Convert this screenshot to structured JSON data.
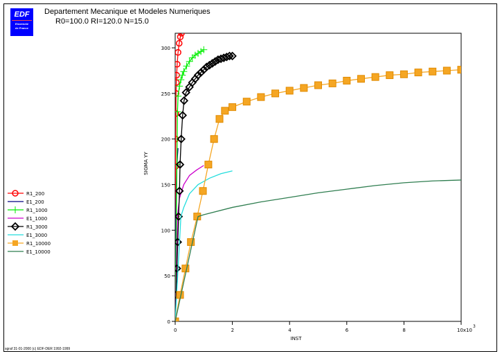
{
  "header": {
    "logo_text": "EDF",
    "logo_sub1": "Electricité",
    "logo_sub2": "de France",
    "title": "Departement Mecanique et Modeles Numeriques",
    "subtitle": "R0=100.0 RI=120.0 N=15.0"
  },
  "footer": {
    "text": "sgraf 31-01-2000 (c) EDF-DER 1992-1999"
  },
  "chart_data": {
    "type": "line",
    "title": "Departement Mecanique et Modeles Numeriques",
    "xlabel": "INST",
    "ylabel": "SIGMA YY",
    "x_multiplier": "x10^3",
    "xlim": [
      0,
      10
    ],
    "ylim": [
      0,
      316
    ],
    "xticks": [
      0,
      2,
      4,
      6,
      8,
      10
    ],
    "xtick_labels": [
      "0",
      "2",
      "4",
      "6",
      "8",
      "10x10"
    ],
    "xtick_exp": "3",
    "yticks": [
      0,
      50,
      100,
      150,
      200,
      250,
      300
    ],
    "ytick_labels": [
      "0",
      "50",
      "100",
      "150",
      "200",
      "250",
      "300"
    ],
    "legend_position": "left",
    "grid": false,
    "series": [
      {
        "name": "R1_200",
        "color": "#ff0000",
        "marker": "circle",
        "points": [
          [
            0,
            0
          ],
          [
            0.005,
            57
          ],
          [
            0.01,
            115
          ],
          [
            0.015,
            170
          ],
          [
            0.02,
            200
          ],
          [
            0.025,
            228
          ],
          [
            0.03,
            250
          ],
          [
            0.04,
            262
          ],
          [
            0.05,
            270
          ],
          [
            0.07,
            282
          ],
          [
            0.1,
            295
          ],
          [
            0.14,
            305
          ],
          [
            0.18,
            312
          ],
          [
            0.22,
            316
          ]
        ]
      },
      {
        "name": "E1_200",
        "color": "#000080",
        "marker": "none",
        "points": [
          [
            0,
            0
          ],
          [
            0.02,
            115
          ],
          [
            0.04,
            150
          ],
          [
            0.06,
            170
          ],
          [
            0.08,
            182
          ],
          [
            0.1,
            190
          ]
        ]
      },
      {
        "name": "R1_1000",
        "color": "#00ee00",
        "marker": "plus",
        "points": [
          [
            0,
            0
          ],
          [
            0.04,
            115
          ],
          [
            0.06,
            172
          ],
          [
            0.08,
            230
          ],
          [
            0.1,
            247
          ],
          [
            0.15,
            258
          ],
          [
            0.2,
            265
          ],
          [
            0.25,
            270
          ],
          [
            0.3,
            274
          ],
          [
            0.4,
            280
          ],
          [
            0.5,
            285
          ],
          [
            0.6,
            289
          ],
          [
            0.7,
            292
          ],
          [
            0.8,
            294
          ],
          [
            0.9,
            296
          ],
          [
            1.0,
            298
          ]
        ]
      },
      {
        "name": "E1_1000",
        "color": "#cc00cc",
        "marker": "none",
        "points": [
          [
            0,
            0
          ],
          [
            0.08,
            115
          ],
          [
            0.15,
            135
          ],
          [
            0.3,
            150
          ],
          [
            0.5,
            160
          ],
          [
            0.75,
            166
          ],
          [
            1.0,
            171
          ]
        ]
      },
      {
        "name": "R1_3000",
        "color": "#000000",
        "marker": "diamond",
        "points": [
          [
            0,
            0
          ],
          [
            0.03,
            29
          ],
          [
            0.06,
            58
          ],
          [
            0.09,
            87
          ],
          [
            0.12,
            115
          ],
          [
            0.15,
            143
          ],
          [
            0.17,
            172
          ],
          [
            0.21,
            200
          ],
          [
            0.26,
            226
          ],
          [
            0.31,
            242
          ],
          [
            0.38,
            251
          ],
          [
            0.5,
            257
          ],
          [
            0.6,
            262
          ],
          [
            0.7,
            266
          ],
          [
            0.8,
            270
          ],
          [
            0.9,
            273
          ],
          [
            1.0,
            276
          ],
          [
            1.1,
            279
          ],
          [
            1.2,
            281
          ],
          [
            1.3,
            283
          ],
          [
            1.4,
            285
          ],
          [
            1.5,
            287
          ],
          [
            1.6,
            288
          ],
          [
            1.7,
            289
          ],
          [
            1.8,
            290
          ],
          [
            1.9,
            291
          ],
          [
            2.0,
            291
          ]
        ]
      },
      {
        "name": "E1_3000",
        "color": "#22dddd",
        "marker": "none",
        "points": [
          [
            0,
            0
          ],
          [
            0.2,
            115
          ],
          [
            0.3,
            125
          ],
          [
            0.5,
            140
          ],
          [
            0.8,
            150
          ],
          [
            1.2,
            157
          ],
          [
            1.6,
            162
          ],
          [
            2.0,
            165
          ]
        ]
      },
      {
        "name": "R1_10000",
        "color": "#f5a623",
        "marker": "square",
        "points": [
          [
            0,
            0
          ],
          [
            0.17,
            29
          ],
          [
            0.36,
            58
          ],
          [
            0.55,
            87
          ],
          [
            0.77,
            115
          ],
          [
            0.97,
            143
          ],
          [
            1.16,
            172
          ],
          [
            1.36,
            200
          ],
          [
            1.55,
            222
          ],
          [
            1.74,
            231
          ],
          [
            2.0,
            235
          ],
          [
            2.5,
            241
          ],
          [
            3.0,
            246
          ],
          [
            3.5,
            250
          ],
          [
            4.0,
            253
          ],
          [
            4.5,
            256
          ],
          [
            5.0,
            259
          ],
          [
            5.5,
            261
          ],
          [
            6.0,
            264
          ],
          [
            6.5,
            266
          ],
          [
            7.0,
            268
          ],
          [
            7.5,
            270
          ],
          [
            8.0,
            271
          ],
          [
            8.5,
            273
          ],
          [
            9.0,
            274
          ],
          [
            9.5,
            275
          ],
          [
            10.0,
            276
          ]
        ]
      },
      {
        "name": "E1_10000",
        "color": "#2e7d4f",
        "marker": "none",
        "points": [
          [
            0,
            0
          ],
          [
            0.8,
            115
          ],
          [
            1,
            117
          ],
          [
            2,
            125
          ],
          [
            3,
            131
          ],
          [
            4,
            136
          ],
          [
            5,
            141
          ],
          [
            6,
            145
          ],
          [
            7,
            149
          ],
          [
            8,
            152
          ],
          [
            9,
            154
          ],
          [
            10,
            155
          ]
        ]
      }
    ]
  }
}
